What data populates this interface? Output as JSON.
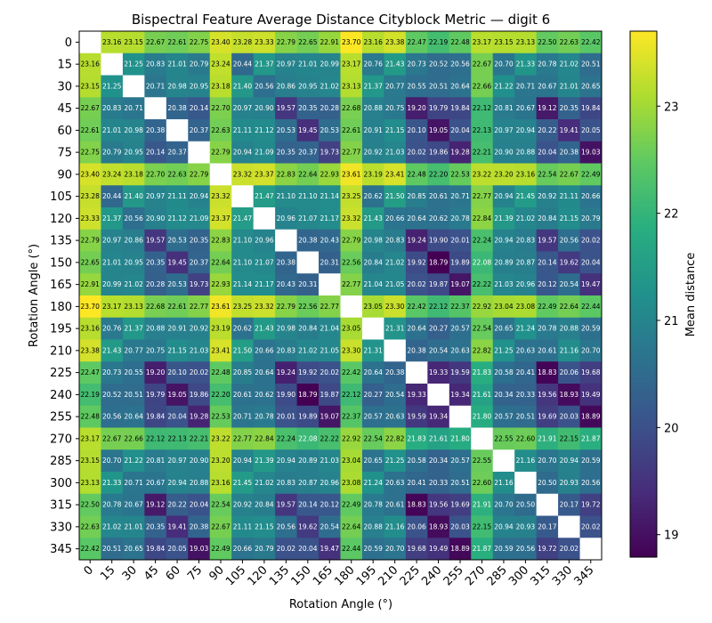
{
  "chart_data": {
    "type": "heatmap",
    "title": "Bispectral Feature Average Distance Cityblock Metric — digit 6",
    "xlabel": "Rotation Angle (°)",
    "ylabel": "Rotation Angle (°)",
    "colorbar_label": "Mean distance",
    "colormap": "viridis",
    "vmin": 18.79,
    "vmax": 23.7,
    "colorbar_ticks": [
      "19",
      "20",
      "21",
      "22",
      "23"
    ],
    "categories": [
      "0",
      "15",
      "30",
      "45",
      "60",
      "75",
      "90",
      "105",
      "120",
      "135",
      "150",
      "165",
      "180",
      "195",
      "210",
      "225",
      "240",
      "255",
      "270",
      "285",
      "300",
      "315",
      "330",
      "345"
    ],
    "matrix": [
      [
        null,
        23.16,
        23.15,
        22.67,
        22.61,
        22.75,
        23.4,
        23.28,
        23.33,
        22.79,
        22.65,
        22.91,
        23.7,
        23.16,
        23.38,
        22.47,
        22.19,
        22.48,
        23.17,
        23.15,
        23.13,
        22.5,
        22.63,
        22.42
      ],
      [
        23.16,
        null,
        21.25,
        20.83,
        21.01,
        20.79,
        23.24,
        20.44,
        21.37,
        20.97,
        21.01,
        20.99,
        23.17,
        20.76,
        21.43,
        20.73,
        20.52,
        20.56,
        22.67,
        20.7,
        21.33,
        20.78,
        21.02,
        20.51
      ],
      [
        23.15,
        21.25,
        null,
        20.71,
        20.98,
        20.95,
        23.18,
        21.4,
        20.56,
        20.86,
        20.95,
        21.02,
        23.13,
        21.37,
        20.77,
        20.55,
        20.51,
        20.64,
        22.66,
        21.22,
        20.71,
        20.67,
        21.01,
        20.65
      ],
      [
        22.67,
        20.83,
        20.71,
        null,
        20.38,
        20.14,
        22.7,
        20.97,
        20.9,
        19.57,
        20.35,
        20.28,
        22.68,
        20.88,
        20.75,
        19.2,
        19.79,
        19.84,
        22.12,
        20.81,
        20.67,
        19.12,
        20.35,
        19.84
      ],
      [
        22.61,
        21.01,
        20.98,
        20.38,
        null,
        20.37,
        22.63,
        21.11,
        21.12,
        20.53,
        19.45,
        20.53,
        22.61,
        20.91,
        21.15,
        20.1,
        19.05,
        20.04,
        22.13,
        20.97,
        20.94,
        20.22,
        19.41,
        20.05
      ],
      [
        22.75,
        20.79,
        20.95,
        20.14,
        20.37,
        null,
        22.79,
        20.94,
        21.09,
        20.35,
        20.37,
        19.73,
        22.77,
        20.92,
        21.03,
        20.02,
        19.86,
        19.28,
        22.21,
        20.9,
        20.88,
        20.04,
        20.38,
        19.03
      ],
      [
        23.4,
        23.24,
        23.18,
        22.7,
        22.63,
        22.79,
        null,
        23.32,
        23.37,
        22.83,
        22.64,
        22.93,
        23.61,
        23.19,
        23.41,
        22.48,
        22.2,
        22.53,
        23.22,
        23.2,
        23.16,
        22.54,
        22.67,
        22.49
      ],
      [
        23.28,
        20.44,
        21.4,
        20.97,
        21.11,
        20.94,
        23.32,
        null,
        21.47,
        21.1,
        21.1,
        21.14,
        23.25,
        20.62,
        21.5,
        20.85,
        20.61,
        20.71,
        22.77,
        20.94,
        21.45,
        20.92,
        21.11,
        20.66
      ],
      [
        23.33,
        21.37,
        20.56,
        20.9,
        21.12,
        21.09,
        23.37,
        21.47,
        null,
        20.96,
        21.07,
        21.17,
        23.32,
        21.43,
        20.66,
        20.64,
        20.62,
        20.78,
        22.84,
        21.39,
        21.02,
        20.84,
        21.15,
        20.79
      ],
      [
        22.79,
        20.97,
        20.86,
        19.57,
        20.53,
        20.35,
        22.83,
        21.1,
        20.96,
        null,
        20.38,
        20.43,
        22.79,
        20.98,
        20.83,
        19.24,
        19.9,
        20.01,
        22.24,
        20.94,
        20.83,
        19.57,
        20.56,
        20.02
      ],
      [
        22.65,
        21.01,
        20.95,
        20.35,
        19.45,
        20.37,
        22.64,
        21.1,
        21.07,
        20.38,
        null,
        20.31,
        22.56,
        20.84,
        21.02,
        19.92,
        18.79,
        19.89,
        22.08,
        20.89,
        20.87,
        20.14,
        19.62,
        20.04
      ],
      [
        22.91,
        20.99,
        21.02,
        20.28,
        20.53,
        19.73,
        22.93,
        21.14,
        21.17,
        20.43,
        20.31,
        null,
        22.77,
        21.04,
        21.05,
        20.02,
        19.87,
        19.07,
        22.22,
        21.03,
        20.96,
        20.12,
        20.54,
        19.47
      ],
      [
        23.7,
        23.17,
        23.13,
        22.68,
        22.61,
        22.77,
        23.61,
        23.25,
        23.32,
        22.79,
        22.56,
        22.77,
        null,
        23.05,
        23.3,
        22.42,
        22.12,
        22.37,
        22.92,
        23.04,
        23.08,
        22.49,
        22.64,
        22.44
      ],
      [
        23.16,
        20.76,
        21.37,
        20.88,
        20.91,
        20.92,
        23.19,
        20.62,
        21.43,
        20.98,
        20.84,
        21.04,
        23.05,
        null,
        21.31,
        20.64,
        20.27,
        20.57,
        22.54,
        20.65,
        21.24,
        20.78,
        20.88,
        20.59
      ],
      [
        23.38,
        21.43,
        20.77,
        20.75,
        21.15,
        21.03,
        23.41,
        21.5,
        20.66,
        20.83,
        21.02,
        21.05,
        23.3,
        21.31,
        null,
        20.38,
        20.54,
        20.63,
        22.82,
        21.25,
        20.63,
        20.61,
        21.16,
        20.7
      ],
      [
        22.47,
        20.73,
        20.55,
        19.2,
        20.1,
        20.02,
        22.48,
        20.85,
        20.64,
        19.24,
        19.92,
        20.02,
        22.42,
        20.64,
        20.38,
        null,
        19.33,
        19.59,
        21.83,
        20.58,
        20.41,
        18.83,
        20.06,
        19.68
      ],
      [
        22.19,
        20.52,
        20.51,
        19.79,
        19.05,
        19.86,
        22.2,
        20.61,
        20.62,
        19.9,
        18.79,
        19.87,
        22.12,
        20.27,
        20.54,
        19.33,
        null,
        19.34,
        21.61,
        20.34,
        20.33,
        19.56,
        18.93,
        19.49
      ],
      [
        22.48,
        20.56,
        20.64,
        19.84,
        20.04,
        19.28,
        22.53,
        20.71,
        20.78,
        20.01,
        19.89,
        19.07,
        22.37,
        20.57,
        20.63,
        19.59,
        19.34,
        null,
        21.8,
        20.57,
        20.51,
        19.69,
        20.03,
        18.89
      ],
      [
        23.17,
        22.67,
        22.66,
        22.12,
        22.13,
        22.21,
        23.22,
        22.77,
        22.84,
        22.24,
        22.08,
        22.22,
        22.92,
        22.54,
        22.82,
        21.83,
        21.61,
        21.8,
        null,
        22.55,
        22.6,
        21.91,
        22.15,
        21.87
      ],
      [
        23.15,
        20.7,
        21.22,
        20.81,
        20.97,
        20.9,
        23.2,
        20.94,
        21.39,
        20.94,
        20.89,
        21.03,
        23.04,
        20.65,
        21.25,
        20.58,
        20.34,
        20.57,
        22.55,
        null,
        21.16,
        20.7,
        20.94,
        20.59
      ],
      [
        23.13,
        21.33,
        20.71,
        20.67,
        20.94,
        20.88,
        23.16,
        21.45,
        21.02,
        20.83,
        20.87,
        20.96,
        23.08,
        21.24,
        20.63,
        20.41,
        20.33,
        20.51,
        22.6,
        21.16,
        null,
        20.5,
        20.93,
        20.56
      ],
      [
        22.5,
        20.78,
        20.67,
        19.12,
        20.22,
        20.04,
        22.54,
        20.92,
        20.84,
        19.57,
        20.14,
        20.12,
        22.49,
        20.78,
        20.61,
        18.83,
        19.56,
        19.69,
        21.91,
        20.7,
        20.5,
        null,
        20.17,
        19.72
      ],
      [
        22.63,
        21.02,
        21.01,
        20.35,
        19.41,
        20.38,
        22.67,
        21.11,
        21.15,
        20.56,
        19.62,
        20.54,
        22.64,
        20.88,
        21.16,
        20.06,
        18.93,
        20.03,
        22.15,
        20.94,
        20.93,
        20.17,
        null,
        20.02
      ],
      [
        22.42,
        20.51,
        20.65,
        19.84,
        20.05,
        19.03,
        22.49,
        20.66,
        20.79,
        20.02,
        20.04,
        19.47,
        22.44,
        20.59,
        20.7,
        19.68,
        19.49,
        18.89,
        21.87,
        20.59,
        20.56,
        19.72,
        20.02,
        null
      ]
    ]
  }
}
